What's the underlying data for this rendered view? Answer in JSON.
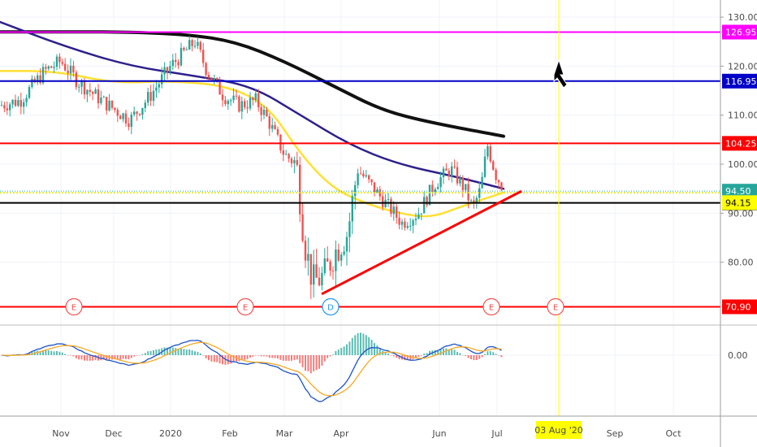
{
  "chart_data": {
    "type": "candlestick",
    "price_axis": {
      "ticks": [
        "130.00",
        "120.00",
        "110.00",
        "100.00",
        "90.00",
        "80.00"
      ],
      "tick_values": [
        130,
        120,
        110,
        100,
        90,
        80
      ],
      "range": [
        67.5,
        133.5
      ]
    },
    "time_axis": {
      "labels": [
        "Nov",
        "Dec",
        "2020",
        "Feb",
        "Mar",
        "Apr",
        "Jun",
        "Jul",
        "Sep",
        "Oct"
      ],
      "highlight": "03 Aug '20",
      "highlight_color": "#ffff00"
    },
    "horizontal_levels": [
      {
        "value": 126.95,
        "label": "126.95",
        "color": "#ff00ff"
      },
      {
        "value": 116.95,
        "label": "116.95",
        "color": "#0000c8"
      },
      {
        "value": 104.25,
        "label": "104.25",
        "color": "#ff0000"
      },
      {
        "value": 92.1,
        "label": "92.10",
        "color": "#000000"
      },
      {
        "value": 70.9,
        "label": "70.90",
        "color": "#ff0000"
      }
    ],
    "price_tags": [
      {
        "value": 94.5,
        "label": "94.50",
        "color": "#26a69a"
      },
      {
        "value": 94.15,
        "label": "94.15",
        "color": "#ffff00"
      }
    ],
    "moving_averages": [
      {
        "color": "#111111",
        "period": 200
      },
      {
        "color": "#2e1f8c",
        "period": 100
      },
      {
        "color": "#ffe033",
        "period": 50
      }
    ],
    "trendline": {
      "color": "#ff0000",
      "from": [
        0.23,
        73.5
      ],
      "to": [
        0.73,
        94.5
      ]
    },
    "event_markers": [
      "E",
      "E",
      "D",
      "E",
      "E"
    ],
    "macd_axis": {
      "ticks": [
        "0.00"
      ]
    },
    "colors": {
      "up": "#26a69a",
      "down": "#ef5350",
      "macd_line": "#1e53c8",
      "signal_line": "#f7a823"
    }
  }
}
